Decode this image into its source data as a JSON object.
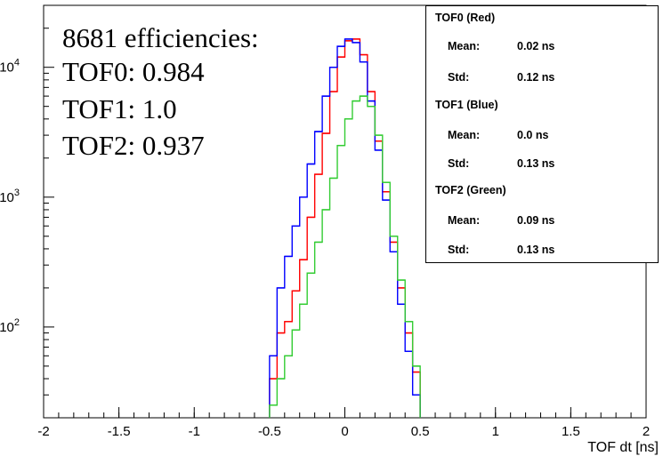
{
  "chart_data": {
    "type": "line",
    "xlabel": "TOF dt [ns]",
    "ylabel": "",
    "xlim": [
      -2,
      2
    ],
    "ylim": [
      20,
      30000
    ],
    "yscale": "log",
    "grid": false,
    "x_tick_labels": [
      "-2",
      "-1.5",
      "-1",
      "-0.5",
      "0",
      "0.5",
      "1",
      "1.5",
      "2"
    ],
    "y_tick_labels": [
      {
        "base": "10",
        "exp": "2",
        "value": 100
      },
      {
        "base": "10",
        "exp": "3",
        "value": 1000
      },
      {
        "base": "10",
        "exp": "4",
        "value": 10000
      }
    ],
    "bin_edges": [
      -0.5,
      -0.45,
      -0.4,
      -0.35,
      -0.3,
      -0.25,
      -0.2,
      -0.15,
      -0.1,
      -0.05,
      0,
      0.05,
      0.1,
      0.15,
      0.2,
      0.25,
      0.3,
      0.35,
      0.4,
      0.45,
      0.5
    ],
    "series": [
      {
        "key": "TOF0",
        "color": "#ff0000",
        "values": [
          40,
          90,
          110,
          190,
          330,
          700,
          1500,
          3100,
          6500,
          12000,
          16000,
          16500,
          12500,
          6500,
          2700,
          1100,
          450,
          200,
          90,
          45
        ]
      },
      {
        "key": "TOF1",
        "color": "#0000ff",
        "values": [
          60,
          200,
          350,
          600,
          1000,
          1800,
          3200,
          6000,
          10000,
          14500,
          16500,
          15500,
          11000,
          5500,
          2300,
          950,
          380,
          150,
          65,
          30
        ]
      },
      {
        "key": "TOF2",
        "color": "#33cc33",
        "values": [
          25,
          40,
          60,
          95,
          150,
          260,
          450,
          800,
          1400,
          2500,
          4000,
          5500,
          6000,
          5000,
          3000,
          1300,
          500,
          230,
          110,
          50
        ]
      }
    ]
  },
  "annotation": {
    "lines": [
      "8681 efficiencies:",
      "TOF0: 0.984",
      "TOF1: 1.0",
      "TOF2: 0.937"
    ]
  },
  "stats_box": {
    "entries": [
      {
        "title": "TOF0 (Red)",
        "mean_label": "Mean:",
        "mean_value": "0.02 ns",
        "std_label": "Std:",
        "std_value": "0.12 ns"
      },
      {
        "title": "TOF1 (Blue)",
        "mean_label": "Mean:",
        "mean_value": "0.0 ns",
        "std_label": "Std:",
        "std_value": "0.13 ns"
      },
      {
        "title": "TOF2 (Green)",
        "mean_label": "Mean:",
        "mean_value": "0.09 ns",
        "std_label": "Std:",
        "std_value": "0.13 ns"
      }
    ]
  }
}
